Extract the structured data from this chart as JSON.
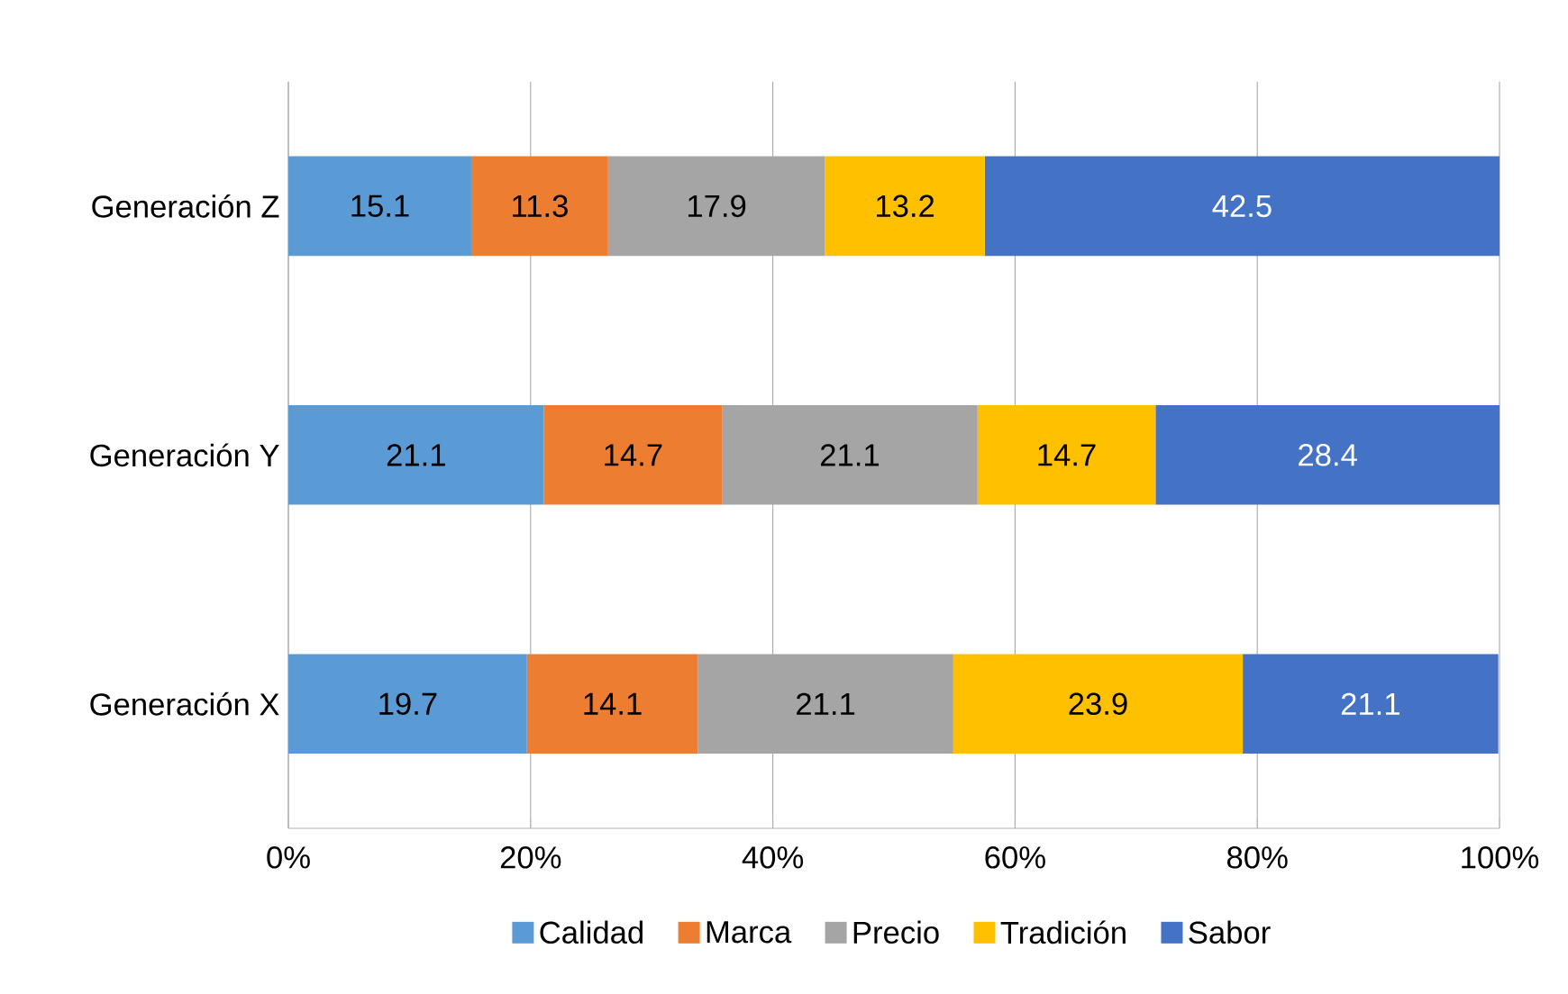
{
  "chart_data": {
    "type": "bar",
    "orientation": "horizontal",
    "stacked": true,
    "categories": [
      "Generación Z",
      "Generación Y",
      "Generación X"
    ],
    "series": [
      {
        "name": "Calidad",
        "color": "#5b9bd5",
        "values": [
          15.1,
          21.1,
          19.7
        ],
        "value_labels": [
          "15.1",
          "21.1",
          "19.7"
        ]
      },
      {
        "name": "Marca",
        "color": "#ed7d31",
        "values": [
          11.3,
          14.7,
          14.1
        ],
        "value_labels": [
          "11.3",
          "14.7",
          "14.1"
        ]
      },
      {
        "name": "Precio",
        "color": "#a5a5a5",
        "values": [
          17.9,
          21.1,
          21.1
        ],
        "value_labels": [
          "17.9",
          "21.1",
          "21.1"
        ]
      },
      {
        "name": "Tradición",
        "color": "#ffc000",
        "values": [
          13.2,
          14.7,
          23.9
        ],
        "value_labels": [
          "13.2",
          "14.7",
          "23.9"
        ]
      },
      {
        "name": "Sabor",
        "color": "#4472c4",
        "values": [
          42.5,
          28.4,
          21.1
        ],
        "value_labels": [
          "42.5",
          "28.4",
          "21.1"
        ]
      }
    ],
    "xlim": [
      0,
      100
    ],
    "xticks": [
      {
        "value": 0,
        "label": "0%"
      },
      {
        "value": 20,
        "label": "20%"
      },
      {
        "value": 40,
        "label": "40%"
      },
      {
        "value": 60,
        "label": "60%"
      },
      {
        "value": 80,
        "label": "80%"
      },
      {
        "value": 100,
        "label": "100%"
      }
    ],
    "grid": "x",
    "legend": "bottom"
  }
}
